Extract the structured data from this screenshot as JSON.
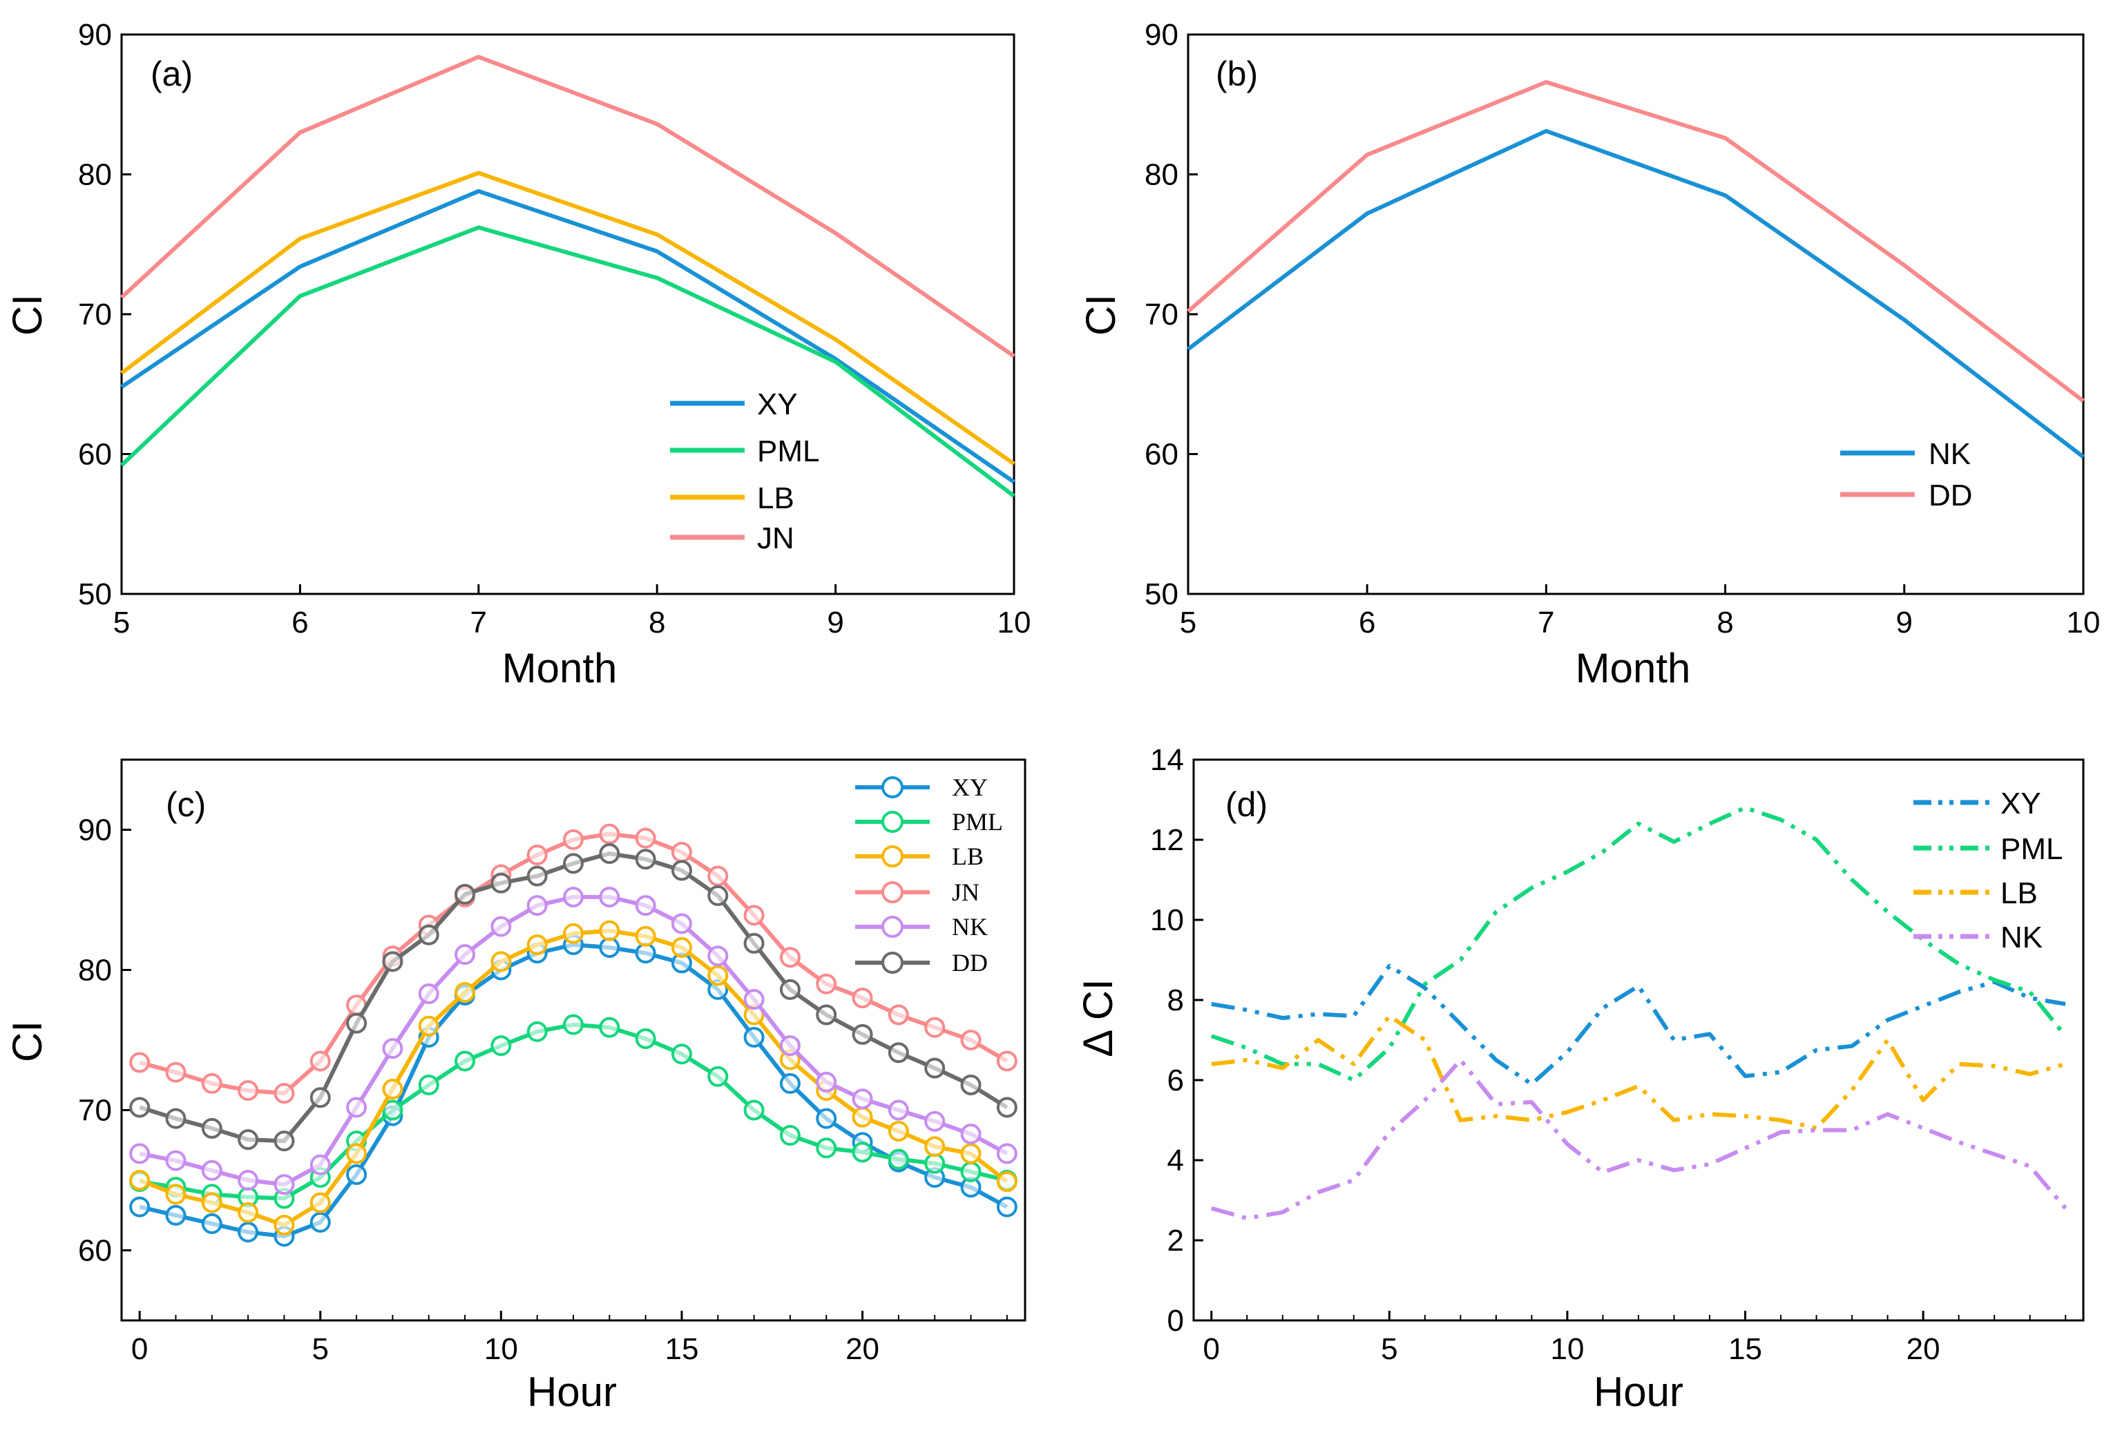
{
  "colors": {
    "XY": "#1a91d4",
    "PML": "#16d67d",
    "LB": "#f7b500",
    "JN": "#f98a8c",
    "NK": "#c78cf0",
    "DD": "#6b6b6b",
    "NK_b": "#1a91d4",
    "DD_b": "#f98a8c"
  },
  "chart_data": [
    {
      "id": "a",
      "panel_label": "(a)",
      "type": "line",
      "xlabel": "Month",
      "ylabel": "CI",
      "xlim": [
        5,
        10
      ],
      "ylim": [
        50,
        90
      ],
      "xticks": [
        5,
        6,
        7,
        8,
        9,
        10
      ],
      "yticks": [
        50,
        60,
        70,
        80,
        90
      ],
      "x": [
        5,
        6,
        7,
        8,
        9,
        10
      ],
      "legend_position": "bottom-right",
      "series": [
        {
          "name": "XY",
          "color_key": "XY",
          "style": "solid",
          "values": [
            64.8,
            73.4,
            78.8,
            74.5,
            66.8,
            58.0
          ]
        },
        {
          "name": "PML",
          "color_key": "PML",
          "style": "solid",
          "values": [
            59.2,
            71.3,
            76.2,
            72.6,
            66.6,
            57.0
          ]
        },
        {
          "name": "LB",
          "color_key": "LB",
          "style": "solid",
          "values": [
            65.8,
            75.4,
            80.1,
            75.7,
            68.2,
            59.3
          ]
        },
        {
          "name": "JN",
          "color_key": "JN",
          "style": "solid",
          "values": [
            71.2,
            83.0,
            88.4,
            83.6,
            75.8,
            67.0
          ]
        }
      ]
    },
    {
      "id": "b",
      "panel_label": "(b)",
      "type": "line",
      "xlabel": "Month",
      "ylabel": "CI",
      "xlim": [
        5,
        10
      ],
      "ylim": [
        50,
        90
      ],
      "xticks": [
        5,
        6,
        7,
        8,
        9,
        10
      ],
      "yticks": [
        50,
        60,
        70,
        80,
        90
      ],
      "x": [
        5,
        6,
        7,
        8,
        9,
        10
      ],
      "legend_position": "bottom-right",
      "series": [
        {
          "name": "NK",
          "color_key": "NK_b",
          "style": "solid",
          "values": [
            67.5,
            77.2,
            83.1,
            78.5,
            69.6,
            59.8
          ]
        },
        {
          "name": "DD",
          "color_key": "DD_b",
          "style": "solid",
          "values": [
            70.2,
            81.4,
            86.6,
            82.6,
            73.5,
            63.8
          ]
        }
      ]
    },
    {
      "id": "c",
      "panel_label": "(c)",
      "type": "line",
      "markers": "circle",
      "xlabel": "Hour",
      "ylabel": "CI",
      "xlim": [
        -0.5,
        24.5
      ],
      "ylim": [
        55,
        95
      ],
      "xticks": [
        0,
        5,
        10,
        15,
        20
      ],
      "yticks": [
        60,
        70,
        80,
        90
      ],
      "x": [
        0,
        1,
        2,
        3,
        4,
        5,
        6,
        7,
        8,
        9,
        10,
        11,
        12,
        13,
        14,
        15,
        16,
        17,
        18,
        19,
        20,
        21,
        22,
        23,
        24
      ],
      "legend_position": "top-right",
      "series": [
        {
          "name": "XY",
          "color_key": "XY",
          "style": "solid",
          "values": [
            63.1,
            62.5,
            61.9,
            61.3,
            61.0,
            62.0,
            65.4,
            69.6,
            75.2,
            78.2,
            80.0,
            81.2,
            81.8,
            81.6,
            81.2,
            80.5,
            78.6,
            75.2,
            71.9,
            69.4,
            67.7,
            66.3,
            65.2,
            64.5,
            63.1
          ]
        },
        {
          "name": "PML",
          "color_key": "PML",
          "style": "solid",
          "values": [
            64.9,
            64.5,
            64.0,
            63.8,
            63.7,
            65.2,
            67.8,
            70.0,
            71.8,
            73.5,
            74.6,
            75.6,
            76.1,
            75.9,
            75.1,
            74.0,
            72.4,
            70.0,
            68.2,
            67.3,
            67.0,
            66.5,
            66.2,
            65.6,
            65.0
          ]
        },
        {
          "name": "LB",
          "color_key": "LB",
          "style": "solid",
          "values": [
            65.0,
            64.0,
            63.4,
            62.7,
            61.8,
            63.4,
            66.9,
            71.5,
            76.0,
            78.4,
            80.6,
            81.8,
            82.6,
            82.8,
            82.4,
            81.6,
            79.6,
            76.8,
            73.6,
            71.4,
            69.5,
            68.5,
            67.4,
            66.9,
            64.9
          ]
        },
        {
          "name": "JN",
          "color_key": "JN",
          "style": "solid",
          "values": [
            73.4,
            72.7,
            71.9,
            71.4,
            71.2,
            73.5,
            77.5,
            81.0,
            83.2,
            85.2,
            86.8,
            88.2,
            89.3,
            89.7,
            89.4,
            88.4,
            86.7,
            83.9,
            80.9,
            79.0,
            78.0,
            76.8,
            75.9,
            75.0,
            73.5
          ]
        },
        {
          "name": "NK",
          "color_key": "NK",
          "style": "solid",
          "values": [
            66.9,
            66.4,
            65.7,
            65.0,
            64.7,
            66.1,
            70.2,
            74.4,
            78.3,
            81.1,
            83.1,
            84.6,
            85.2,
            85.2,
            84.6,
            83.3,
            81.0,
            77.9,
            74.6,
            72.0,
            70.8,
            70.0,
            69.2,
            68.3,
            66.9
          ]
        },
        {
          "name": "DD",
          "color_key": "DD",
          "style": "solid",
          "values": [
            70.2,
            69.4,
            68.7,
            67.9,
            67.8,
            70.9,
            76.2,
            80.6,
            82.5,
            85.4,
            86.2,
            86.7,
            87.6,
            88.3,
            87.9,
            87.1,
            85.3,
            81.9,
            78.6,
            76.8,
            75.4,
            74.1,
            73.0,
            71.8,
            70.2
          ]
        }
      ]
    },
    {
      "id": "d",
      "panel_label": "(d)",
      "type": "line",
      "xlabel": "Hour",
      "ylabel": "Δ CI",
      "xlim": [
        -0.5,
        24.5
      ],
      "ylim": [
        0,
        14
      ],
      "xticks": [
        0,
        5,
        10,
        15,
        20
      ],
      "yticks": [
        0,
        2,
        4,
        6,
        8,
        10,
        12,
        14
      ],
      "x": [
        0,
        1,
        2,
        3,
        4,
        5,
        6,
        7,
        8,
        9,
        10,
        11,
        12,
        13,
        14,
        15,
        16,
        17,
        18,
        19,
        20,
        21,
        22,
        23,
        24
      ],
      "legend_position": "top-right",
      "series": [
        {
          "name": "XY",
          "color_key": "XY",
          "style": "dashdotdot",
          "values": [
            7.9,
            7.75,
            7.55,
            7.65,
            7.6,
            8.85,
            8.3,
            7.4,
            6.5,
            5.9,
            6.7,
            7.8,
            8.35,
            7.0,
            7.15,
            6.1,
            6.2,
            6.75,
            6.85,
            7.5,
            7.85,
            8.2,
            8.45,
            8.05,
            7.9
          ]
        },
        {
          "name": "PML",
          "color_key": "PML",
          "style": "dashdotdot",
          "values": [
            7.1,
            6.8,
            6.4,
            6.4,
            6.0,
            6.8,
            8.4,
            9.0,
            10.2,
            10.8,
            11.2,
            11.7,
            12.4,
            11.95,
            12.4,
            12.8,
            12.5,
            12.0,
            11.0,
            10.2,
            9.5,
            8.9,
            8.5,
            8.2,
            7.1
          ]
        },
        {
          "name": "LB",
          "color_key": "LB",
          "style": "dashdotdot",
          "values": [
            6.4,
            6.5,
            6.3,
            7.0,
            6.4,
            7.6,
            7.0,
            5.0,
            5.1,
            5.0,
            5.2,
            5.5,
            5.85,
            5.0,
            5.15,
            5.1,
            5.0,
            4.8,
            5.75,
            7.0,
            5.5,
            6.4,
            6.35,
            6.15,
            6.4
          ]
        },
        {
          "name": "NK",
          "color_key": "NK",
          "style": "dashdotdot",
          "values": [
            2.8,
            2.55,
            2.7,
            3.2,
            3.5,
            4.7,
            5.5,
            6.5,
            5.4,
            5.45,
            4.4,
            3.7,
            4.0,
            3.75,
            3.9,
            4.3,
            4.7,
            4.75,
            4.75,
            5.15,
            4.8,
            4.45,
            4.15,
            3.85,
            2.8
          ]
        }
      ]
    }
  ]
}
